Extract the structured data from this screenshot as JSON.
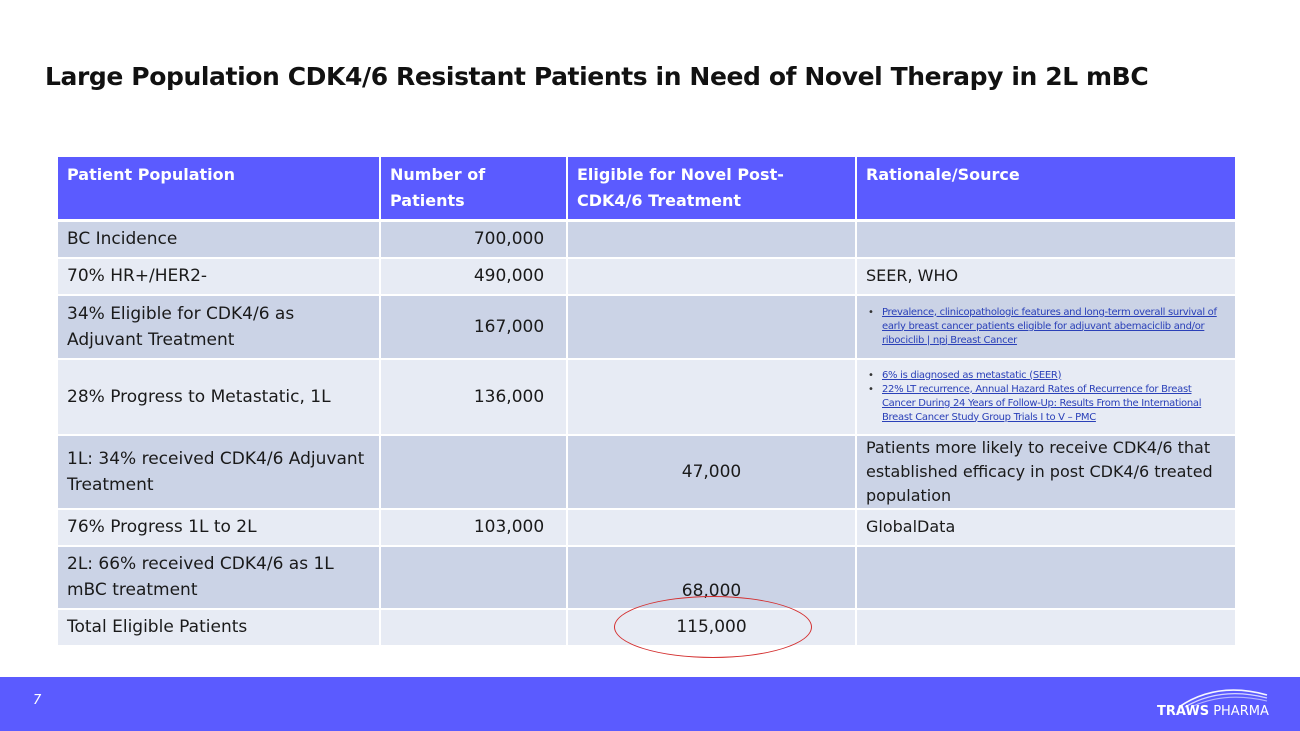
{
  "slide": {
    "title": "Large Population CDK4/6 Resistant Patients in Need of Novel Therapy in 2L mBC",
    "page_number": "7"
  },
  "table": {
    "headers": [
      "Patient Population",
      "Number of Patients",
      "Eligible for Novel Post-CDK4/6 Treatment",
      "Rationale/Source"
    ],
    "rows": [
      {
        "population": "BC Incidence",
        "number": "700,000",
        "eligible": "",
        "source": ""
      },
      {
        "population": "70% HR+/HER2-",
        "number": "490,000",
        "eligible": "",
        "source": "SEER, WHO"
      },
      {
        "population": "34% Eligible for CDK4/6 as Adjuvant Treatment",
        "number": "167,000",
        "eligible": "",
        "source_refs": [
          "Prevalence, clinicopathologic features and long-term overall survival of early breast cancer patients eligible for adjuvant abemaciclib and/or ribociclib | npj Breast Cancer"
        ]
      },
      {
        "population": "28% Progress to Metastatic, 1L",
        "number": "136,000",
        "eligible": "",
        "source_refs": [
          "6% is diagnosed as metastatic (SEER)",
          "22% LT recurrence, Annual Hazard Rates of Recurrence for Breast Cancer During 24 Years of Follow-Up: Results From the International Breast Cancer Study Group Trials I to V – PMC"
        ]
      },
      {
        "population": "1L: 34% received CDK4/6 Adjuvant Treatment",
        "number": "",
        "eligible": "47,000",
        "source": "Patients more likely to receive CDK4/6 that established efficacy in post CDK4/6 treated population"
      },
      {
        "population": "76% Progress 1L to 2L",
        "number": "103,000",
        "eligible": "",
        "source": "GlobalData"
      },
      {
        "population": "2L: 66% received CDK4/6 as 1L mBC treatment",
        "number": "",
        "eligible": "68,000",
        "source": ""
      },
      {
        "population": "Total Eligible Patients",
        "number": "",
        "eligible": "115,000",
        "source": ""
      }
    ]
  },
  "logo": {
    "text_bold": "TRAWS",
    "text_regular": " PHARMA"
  },
  "colors": {
    "header": "#5b5bff",
    "row_dark": "#cbd3e6",
    "row_light": "#e7ebf4",
    "highlight_circle": "#d43030",
    "footer": "#5b5bff"
  }
}
